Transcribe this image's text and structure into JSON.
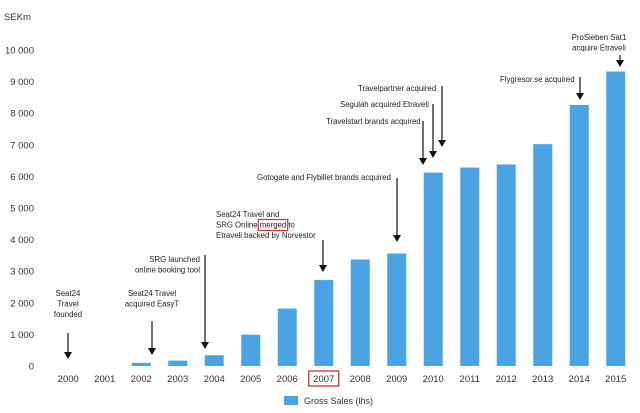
{
  "chart_data": {
    "type": "bar",
    "ylabel": "SEKm",
    "ylim": [
      0,
      10000
    ],
    "yticks": [
      "0",
      "1 000",
      "2 000",
      "3 000",
      "4 000",
      "5 000",
      "6 000",
      "7 000",
      "8 000",
      "9 000",
      "10 000"
    ],
    "grid": false,
    "categories": [
      "2000",
      "2001",
      "2002",
      "2003",
      "2004",
      "2005",
      "2006",
      "2007",
      "2008",
      "2009",
      "2010",
      "2011",
      "2012",
      "2013",
      "2014",
      "2015"
    ],
    "series": [
      {
        "name": "Gross Sales (lhs)",
        "color": "#4aa3e3",
        "values": [
          0,
          0,
          100,
          170,
          340,
          990,
          1820,
          2720,
          3370,
          3560,
          6120,
          6280,
          6380,
          7020,
          8260,
          9320
        ]
      }
    ],
    "legend_position": "bottom",
    "highlighted_category": "2007",
    "highlight_color": "#c0392b",
    "annotations": [
      {
        "lines": [
          "Seat24",
          "Travel",
          "founded"
        ],
        "category": "2000"
      },
      {
        "lines": [
          "Seat24 Travel",
          "acquired EasyT"
        ],
        "category": "2002"
      },
      {
        "lines": [
          "SRG launched",
          "online booking tool"
        ],
        "category": "2004"
      },
      {
        "lines": [
          "Seat24 Travel and",
          "SRG Online merged to",
          "Etraveli backed by Norvestor"
        ],
        "category": "2007",
        "highlight_word": "merged"
      },
      {
        "lines": [
          "Gotogate and Flybillet brands acquired"
        ],
        "category": "2009"
      },
      {
        "lines": [
          "Travelpartner acquired"
        ],
        "category": "2010"
      },
      {
        "lines": [
          "Segulah acquired Etraveli"
        ],
        "category": "2010"
      },
      {
        "lines": [
          "Travelstart brands acquired"
        ],
        "category": "2010"
      },
      {
        "lines": [
          "Flygresor.se acquired"
        ],
        "category": "2014"
      },
      {
        "lines": [
          "ProSieben Sat1",
          "acquire Etraveli"
        ],
        "category": "2015"
      }
    ]
  }
}
